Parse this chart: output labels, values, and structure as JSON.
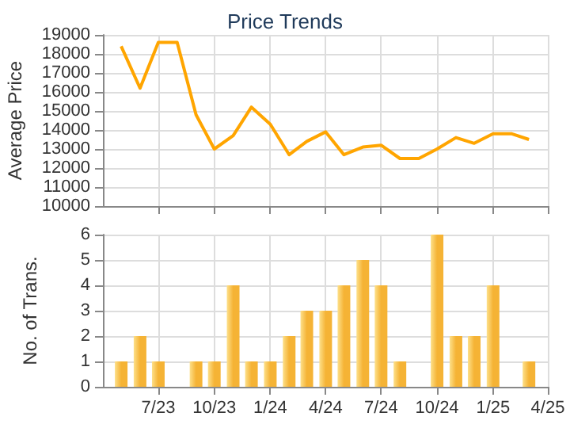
{
  "chart_data": [
    {
      "type": "line",
      "title": "Price Trends",
      "ylabel": "Average Price",
      "x": [
        "2023-05",
        "2023-06",
        "2023-07",
        "2023-08",
        "2023-09",
        "2023-10",
        "2023-11",
        "2023-12",
        "2024-01",
        "2024-02",
        "2024-03",
        "2024-04",
        "2024-05",
        "2024-06",
        "2024-07",
        "2024-08",
        "2024-09",
        "2024-10",
        "2024-11",
        "2024-12",
        "2025-01",
        "2025-02",
        "2025-03"
      ],
      "series": [
        {
          "color": "#ffa500",
          "values": [
            18400,
            16200,
            18600,
            18600,
            14800,
            13000,
            13700,
            15200,
            14300,
            12700,
            13400,
            13900,
            12700,
            13100,
            13200,
            12500,
            12500,
            13000,
            13600,
            13300,
            13800,
            13800,
            13500
          ]
        }
      ],
      "xlim": [
        "2023-04",
        "2025-04"
      ],
      "xticks": [
        {
          "value": "2023-07",
          "label": null
        },
        {
          "value": "2023-10",
          "label": null
        },
        {
          "value": "2024-01",
          "label": null
        },
        {
          "value": "2024-04",
          "label": null
        },
        {
          "value": "2024-07",
          "label": null
        },
        {
          "value": "2024-10",
          "label": null
        },
        {
          "value": "2025-01",
          "label": null
        },
        {
          "value": "2025-04",
          "label": null
        }
      ],
      "ylim": [
        10000,
        19000
      ],
      "yticks": [
        10000,
        11000,
        12000,
        13000,
        14000,
        15000,
        16000,
        17000,
        18000,
        19000
      ],
      "grid": true,
      "marker": "none",
      "tick_labels": "y"
    },
    {
      "type": "bar",
      "ylabel": "No. of Trans.",
      "x": [
        "2023-05",
        "2023-06",
        "2023-07",
        "2023-08",
        "2023-09",
        "2023-10",
        "2023-11",
        "2023-12",
        "2024-01",
        "2024-02",
        "2024-03",
        "2024-04",
        "2024-05",
        "2024-06",
        "2024-07",
        "2024-08",
        "2024-09",
        "2024-10",
        "2024-11",
        "2024-12",
        "2025-01",
        "2025-02",
        "2025-03"
      ],
      "series": [
        {
          "color": "#f5b335",
          "values": [
            1,
            2,
            1,
            0,
            1,
            1,
            4,
            1,
            1,
            2,
            3,
            3,
            4,
            5,
            4,
            1,
            0,
            6,
            2,
            2,
            4,
            0,
            1
          ]
        }
      ],
      "xlim": [
        "2023-04",
        "2025-04"
      ],
      "xticks": [
        {
          "value": "2023-07",
          "label": "7/23"
        },
        {
          "value": "2023-10",
          "label": "10/23"
        },
        {
          "value": "2024-01",
          "label": "1/24"
        },
        {
          "value": "2024-04",
          "label": "4/24"
        },
        {
          "value": "2024-07",
          "label": "7/24"
        },
        {
          "value": "2024-10",
          "label": "10/24"
        },
        {
          "value": "2025-01",
          "label": "1/25"
        },
        {
          "value": "2025-04",
          "label": "4/25"
        }
      ],
      "ylim": [
        0,
        6
      ],
      "yticks": [
        0,
        1,
        2,
        3,
        4,
        5,
        6
      ],
      "grid": true
    }
  ]
}
